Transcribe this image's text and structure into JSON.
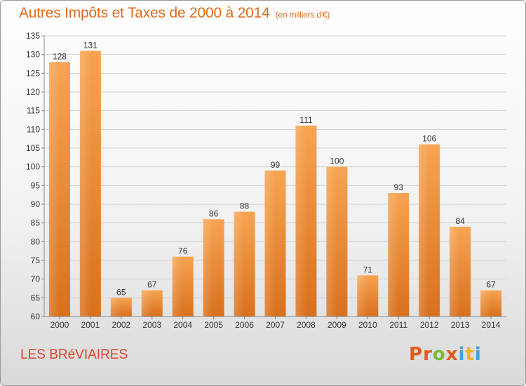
{
  "title": "Autres Impôts et Taxes de 2000 à 2014",
  "unit": "(en milliers d'€)",
  "town": "LES BRéVIAIRES",
  "logo": "Proxiti",
  "colors": {
    "bar": "#f0882e",
    "bar_light": "#f7a85a",
    "title": "#e06a1a",
    "town": "#e0402a"
  },
  "chart_data": {
    "type": "bar",
    "title": "Autres Impôts et Taxes de 2000 à 2014",
    "categories": [
      "2000",
      "2001",
      "2002",
      "2003",
      "2004",
      "2005",
      "2006",
      "2007",
      "2008",
      "2009",
      "2010",
      "2011",
      "2012",
      "2013",
      "2014"
    ],
    "values": [
      128,
      131,
      65,
      67,
      76,
      86,
      88,
      99,
      111,
      100,
      71,
      93,
      106,
      84,
      67
    ],
    "ylim": [
      60,
      135
    ],
    "yticks": [
      60,
      65,
      70,
      75,
      80,
      85,
      90,
      95,
      100,
      105,
      110,
      115,
      120,
      125,
      130,
      135
    ],
    "grid": true,
    "ylabel": "",
    "xlabel": ""
  }
}
